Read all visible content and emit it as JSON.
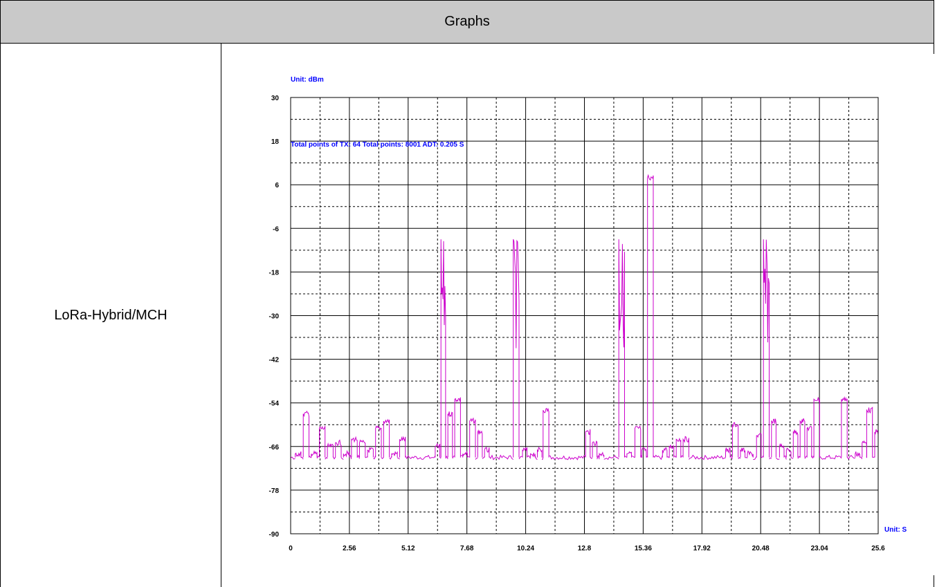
{
  "table": {
    "header": "Graphs",
    "row_label": "LoRa-Hybrid/MCH"
  },
  "colors": {
    "trace": "#cc00cc",
    "annotation": "#0000ff",
    "header_bg": "#c9c9c9"
  },
  "chart_data": {
    "type": "line",
    "unit_y": "Unit: dBm",
    "unit_x": "Unit: S",
    "annotation": "Total points of TX: 64 Total points: 8001 ADT: 0.205 S",
    "xlim": [
      0,
      25.6
    ],
    "ylim": [
      -90,
      30
    ],
    "x_ticks": [
      "0",
      "2.56",
      "5.12",
      "7.68",
      "10.24",
      "12.8",
      "15.36",
      "17.92",
      "20.48",
      "23.04",
      "25.6"
    ],
    "y_ticks": [
      "30",
      "18",
      "6",
      "-6",
      "-18",
      "-30",
      "-42",
      "-54",
      "-66",
      "-78",
      "-90"
    ],
    "grid": true,
    "noise_floor": -69,
    "series": [
      {
        "pulses": [
          {
            "x": 0.2,
            "w": 0.25,
            "y": -68
          },
          {
            "x": 0.55,
            "w": 0.25,
            "y": -57
          },
          {
            "x": 0.9,
            "w": 0.25,
            "y": -68
          },
          {
            "x": 1.25,
            "w": 0.25,
            "y": -61
          },
          {
            "x": 1.6,
            "w": 0.25,
            "y": -66
          },
          {
            "x": 1.95,
            "w": 0.25,
            "y": -65
          },
          {
            "x": 2.3,
            "w": 0.25,
            "y": -68
          },
          {
            "x": 2.65,
            "w": 0.25,
            "y": -64
          },
          {
            "x": 3.0,
            "w": 0.25,
            "y": -65
          },
          {
            "x": 3.35,
            "w": 0.25,
            "y": -67
          },
          {
            "x": 3.7,
            "w": 0.25,
            "y": -61
          },
          {
            "x": 4.05,
            "w": 0.25,
            "y": -59
          },
          {
            "x": 4.4,
            "w": 0.25,
            "y": -68
          },
          {
            "x": 4.75,
            "w": 0.25,
            "y": -64
          },
          {
            "x": 6.3,
            "w": 0.2,
            "y": -66
          },
          {
            "x": 6.55,
            "w": 0.2,
            "y": -9
          },
          {
            "x": 6.85,
            "w": 0.2,
            "y": -57
          },
          {
            "x": 7.15,
            "w": 0.25,
            "y": -53
          },
          {
            "x": 7.5,
            "w": 0.2,
            "y": -68
          },
          {
            "x": 7.8,
            "w": 0.25,
            "y": -59
          },
          {
            "x": 8.15,
            "w": 0.2,
            "y": -62
          },
          {
            "x": 8.45,
            "w": 0.2,
            "y": -67
          },
          {
            "x": 9.7,
            "w": 0.25,
            "y": -9
          },
          {
            "x": 10.1,
            "w": 0.2,
            "y": -67
          },
          {
            "x": 10.45,
            "w": 0.2,
            "y": -68
          },
          {
            "x": 10.75,
            "w": 0.2,
            "y": -67
          },
          {
            "x": 11.0,
            "w": 0.25,
            "y": -56
          },
          {
            "x": 12.85,
            "w": 0.2,
            "y": -62
          },
          {
            "x": 13.15,
            "w": 0.2,
            "y": -65
          },
          {
            "x": 13.45,
            "w": 0.2,
            "y": -68
          },
          {
            "x": 14.3,
            "w": 0.25,
            "y": -9
          },
          {
            "x": 14.65,
            "w": 0.2,
            "y": -68
          },
          {
            "x": 15.0,
            "w": 0.25,
            "y": -61
          },
          {
            "x": 15.3,
            "w": 0.2,
            "y": -67
          },
          {
            "x": 15.55,
            "w": 0.25,
            "y": 8
          },
          {
            "x": 16.2,
            "w": 0.2,
            "y": -67
          },
          {
            "x": 16.5,
            "w": 0.2,
            "y": -66
          },
          {
            "x": 16.8,
            "w": 0.2,
            "y": -64
          },
          {
            "x": 17.1,
            "w": 0.25,
            "y": -64
          },
          {
            "x": 18.95,
            "w": 0.2,
            "y": -67
          },
          {
            "x": 19.25,
            "w": 0.25,
            "y": -60
          },
          {
            "x": 19.6,
            "w": 0.2,
            "y": -67
          },
          {
            "x": 19.9,
            "w": 0.25,
            "y": -68
          },
          {
            "x": 20.3,
            "w": 0.2,
            "y": -63
          },
          {
            "x": 20.6,
            "w": 0.25,
            "y": -9
          },
          {
            "x": 20.95,
            "w": 0.2,
            "y": -59
          },
          {
            "x": 21.3,
            "w": 0.2,
            "y": -66
          },
          {
            "x": 21.6,
            "w": 0.2,
            "y": -67
          },
          {
            "x": 21.9,
            "w": 0.2,
            "y": -62
          },
          {
            "x": 22.2,
            "w": 0.2,
            "y": -59
          },
          {
            "x": 22.5,
            "w": 0.2,
            "y": -61
          },
          {
            "x": 22.8,
            "w": 0.25,
            "y": -53
          },
          {
            "x": 24.0,
            "w": 0.25,
            "y": -53
          },
          {
            "x": 24.6,
            "w": 0.2,
            "y": -68
          },
          {
            "x": 24.9,
            "w": 0.2,
            "y": -65
          },
          {
            "x": 25.1,
            "w": 0.25,
            "y": -56
          },
          {
            "x": 25.45,
            "w": 0.15,
            "y": -62
          }
        ]
      }
    ]
  }
}
